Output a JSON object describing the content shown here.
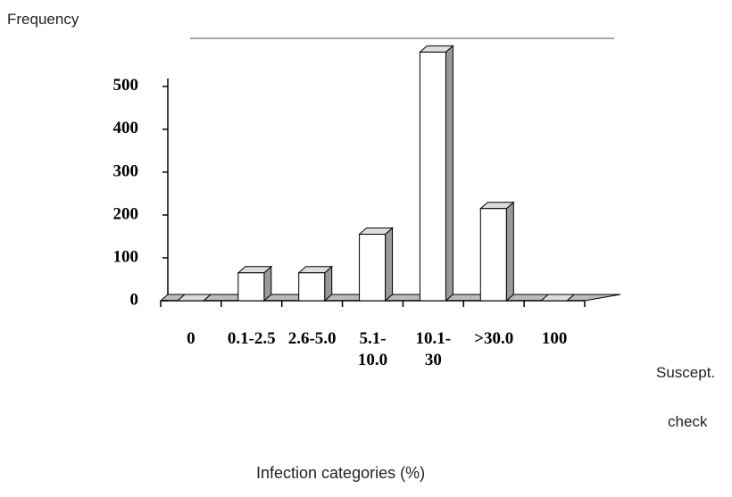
{
  "chart_data": {
    "type": "bar",
    "ylabel": "Frequency",
    "xlabel": "Infection categories (%)",
    "annotations": [
      "Suscept.",
      "check"
    ],
    "categories": [
      "0",
      "0.1-2.5",
      "2.6-5.0",
      "5.1- 10.0",
      "10.1- 30",
      ">30.0",
      "100"
    ],
    "values": [
      0,
      65,
      65,
      155,
      580,
      215,
      0
    ],
    "color": "#ffffff",
    "ylim": [
      0,
      610
    ],
    "yticks": [
      0,
      100,
      200,
      300,
      400,
      500
    ]
  }
}
